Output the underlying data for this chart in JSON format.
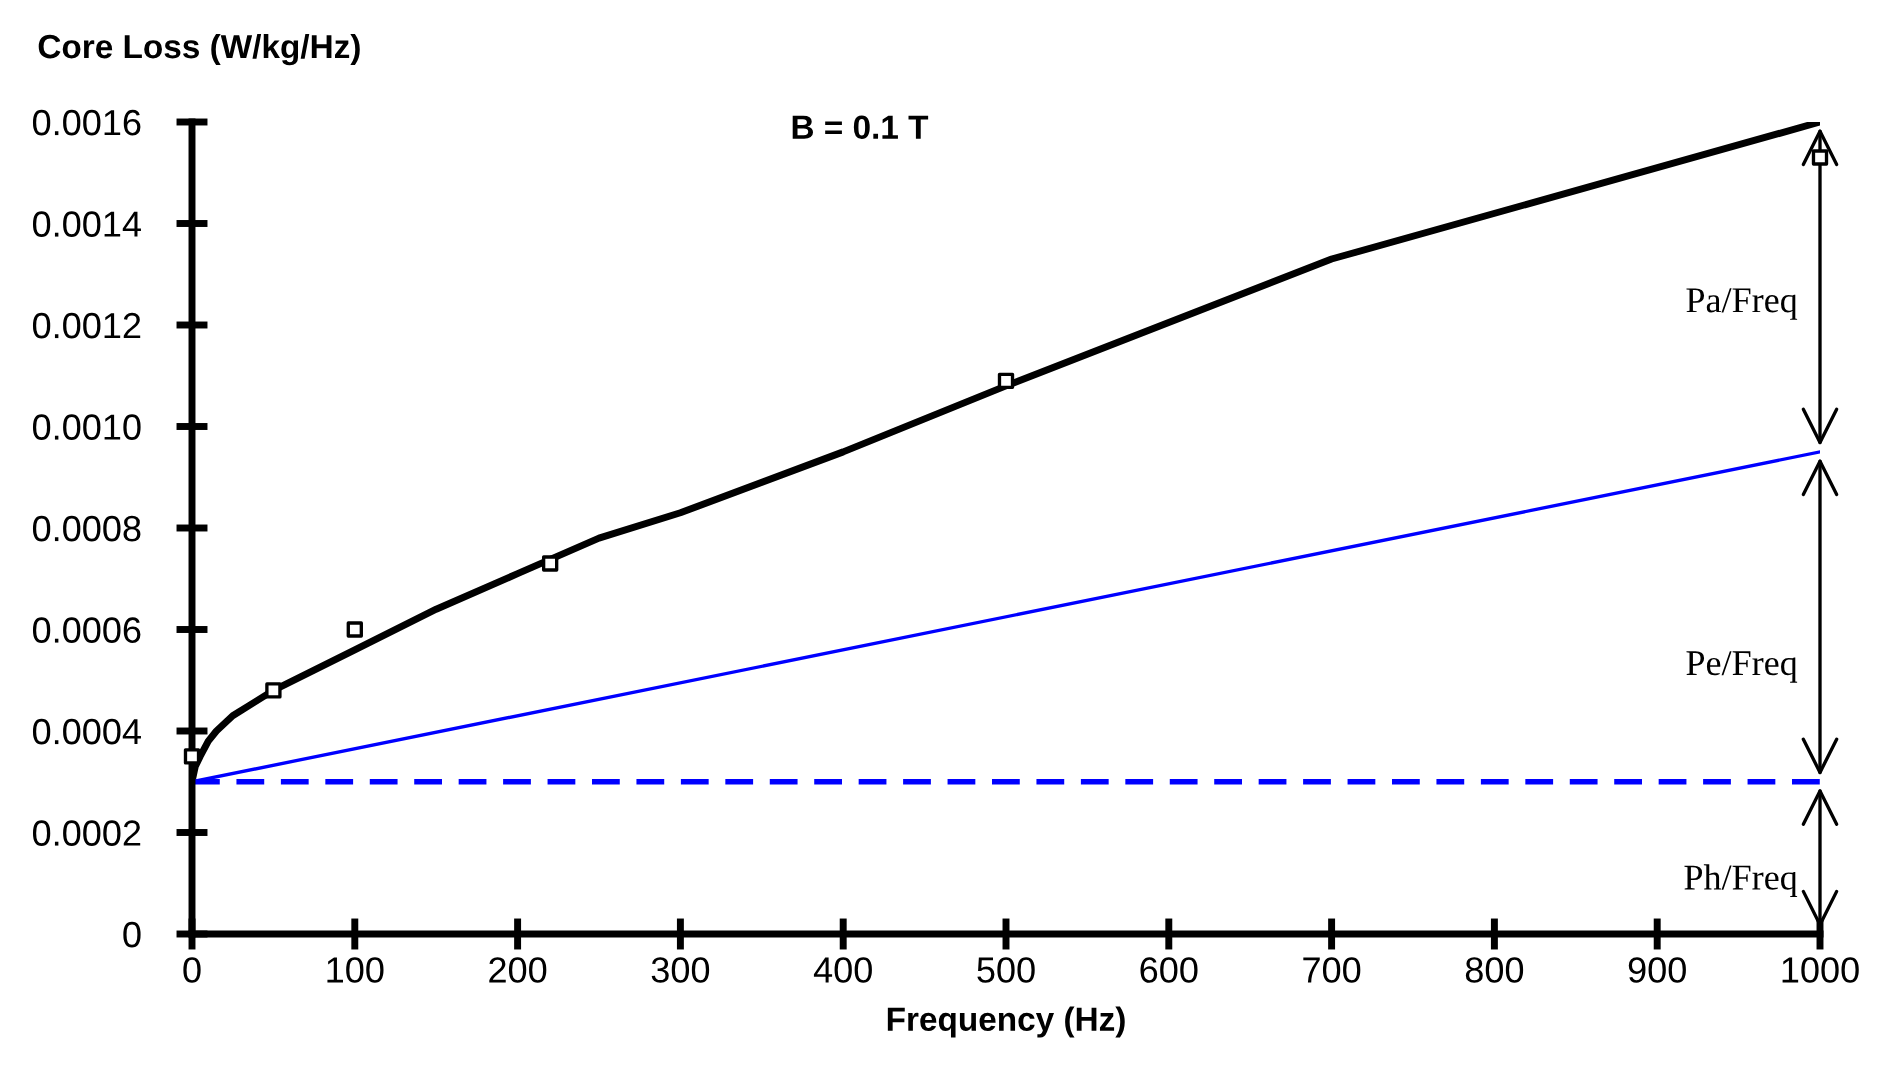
{
  "chart_data": {
    "type": "line",
    "title": "B = 0.1 T",
    "xlabel": "Frequency (Hz)",
    "ylabel": "Core Loss (W/kg/Hz)",
    "xlim": [
      0,
      1000
    ],
    "xticks": [
      0,
      100,
      200,
      300,
      400,
      500,
      600,
      700,
      800,
      900,
      1000
    ],
    "ylim": [
      0,
      0.0016
    ],
    "yticks": [
      0,
      0.0002,
      0.0004,
      0.0006,
      0.0008,
      {
        "value": 0.001,
        "label": "0.0010"
      },
      0.0012,
      0.0014,
      0.0016
    ],
    "grid": false,
    "legend": false,
    "series": [
      {
        "color": "#000000",
        "line_style": "solid",
        "marker": "none",
        "x": [
          0,
          2,
          5,
          10,
          15,
          25,
          35,
          50,
          75,
          100,
          150,
          200,
          250,
          300,
          400,
          500,
          700,
          1000
        ],
        "values": [
          0.0003,
          0.00033,
          0.00035,
          0.00038,
          0.0004,
          0.00043,
          0.00045,
          0.00048,
          0.00052,
          0.00056,
          0.00064,
          0.00071,
          0.00078,
          0.00083,
          0.00095,
          0.00108,
          0.00133,
          0.0016
        ]
      },
      {
        "color": "#0000ff",
        "line_style": "solid",
        "marker": "none",
        "x": [
          0,
          1000
        ],
        "values": [
          0.0003,
          0.00095
        ]
      },
      {
        "color": "#0000ff",
        "line_style": "dashed",
        "marker": "none",
        "x": [
          0,
          1000
        ],
        "values": [
          0.0003,
          0.0003
        ]
      },
      {
        "type": "scatter",
        "color": "#000000",
        "marker": "square",
        "x": [
          0,
          50,
          100,
          220,
          500,
          1000
        ],
        "values": [
          0.00035,
          0.00048,
          0.0006,
          0.00073,
          0.00109,
          0.00153
        ]
      }
    ],
    "annotations": [
      "Pa/Freq",
      "Pe/Freq",
      "Ph/Freq"
    ]
  }
}
